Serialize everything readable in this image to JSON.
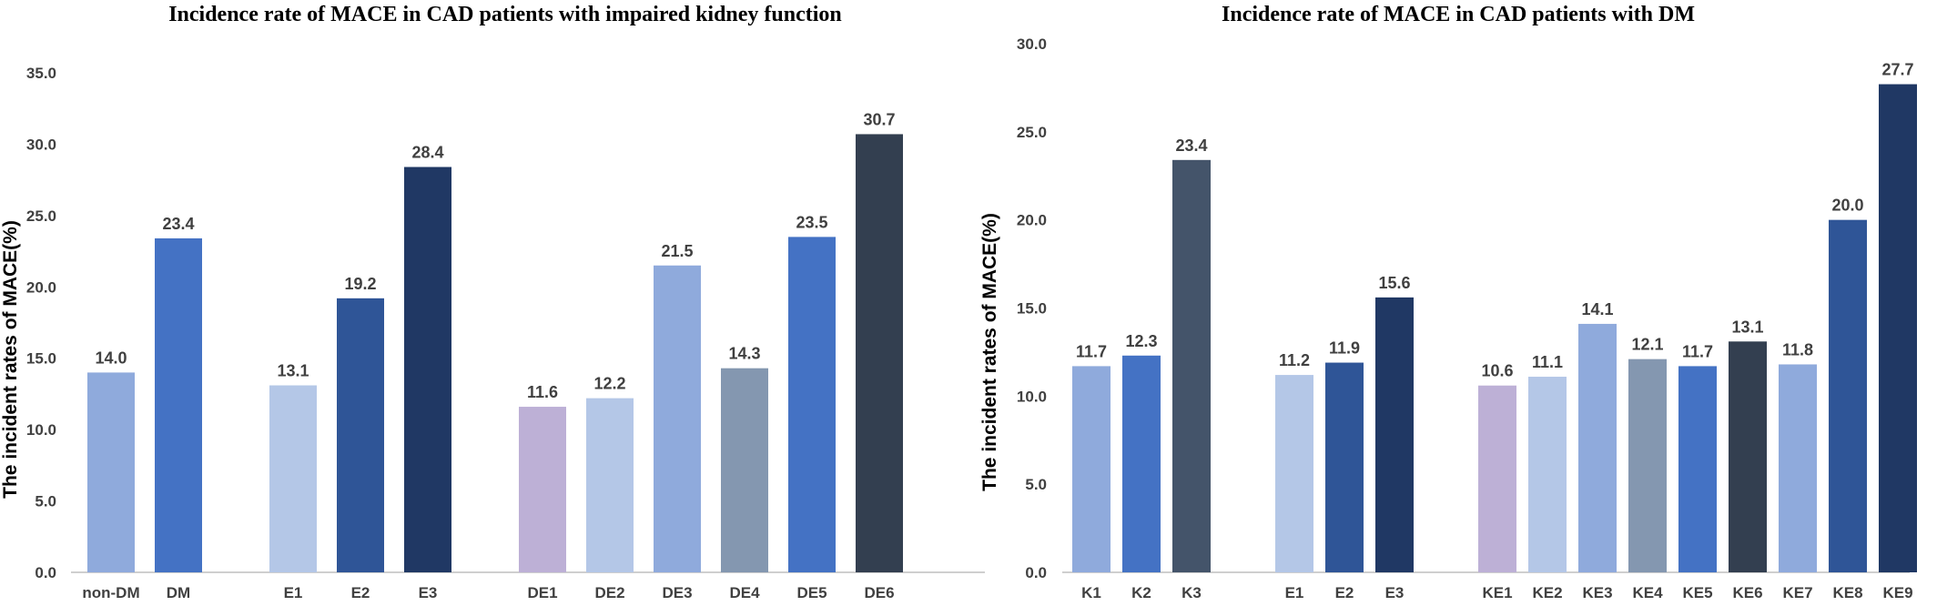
{
  "chart_data": [
    {
      "type": "bar",
      "title": "Incidence rate of MACE in CAD patients with impaired kidney function",
      "ylabel": "The incident rates of MACE(%)",
      "xlabel": "",
      "ylim": [
        0,
        35
      ],
      "yticks": [
        "0.0",
        "5.0",
        "10.0",
        "15.0",
        "20.0",
        "25.0",
        "30.0",
        "35.0"
      ],
      "grid": false,
      "groups": [
        [
          {
            "label": "non-DM",
            "value": 14.0,
            "value_label": "14.0",
            "color": "#8faadc"
          },
          {
            "label": "DM",
            "value": 23.4,
            "value_label": "23.4",
            "color": "#4472c4"
          }
        ],
        [
          {
            "label": "E1",
            "value": 13.1,
            "value_label": "13.1",
            "color": "#b4c7e7"
          },
          {
            "label": "E2",
            "value": 19.2,
            "value_label": "19.2",
            "color": "#2f5597"
          },
          {
            "label": "E3",
            "value": 28.4,
            "value_label": "28.4",
            "color": "#203864"
          }
        ],
        [
          {
            "label": "DE1",
            "value": 11.6,
            "value_label": "11.6",
            "color": "#bdb0d6"
          },
          {
            "label": "DE2",
            "value": 12.2,
            "value_label": "12.2",
            "color": "#b4c7e7"
          },
          {
            "label": "DE3",
            "value": 21.5,
            "value_label": "21.5",
            "color": "#8faadc"
          },
          {
            "label": "DE4",
            "value": 14.3,
            "value_label": "14.3",
            "color": "#8497b0"
          },
          {
            "label": "DE5",
            "value": 23.5,
            "value_label": "23.5",
            "color": "#4472c4"
          },
          {
            "label": "DE6",
            "value": 30.7,
            "value_label": "30.7",
            "color": "#333f50"
          }
        ]
      ]
    },
    {
      "type": "bar",
      "title": "Incidence rate of MACE in CAD patients with DM",
      "ylabel": "The incident rates of MACE(%)",
      "xlabel": "",
      "ylim": [
        0,
        30
      ],
      "yticks": [
        "0.0",
        "5.0",
        "10.0",
        "15.0",
        "20.0",
        "25.0",
        "30.0"
      ],
      "grid": false,
      "groups": [
        [
          {
            "label": "K1",
            "value": 11.7,
            "value_label": "11.7",
            "color": "#8faadc"
          },
          {
            "label": "K2",
            "value": 12.3,
            "value_label": "12.3",
            "color": "#4472c4"
          },
          {
            "label": "K3",
            "value": 23.4,
            "value_label": "23.4",
            "color": "#44546a"
          }
        ],
        [
          {
            "label": "E1",
            "value": 11.2,
            "value_label": "11.2",
            "color": "#b4c7e7"
          },
          {
            "label": "E2",
            "value": 11.9,
            "value_label": "11.9",
            "color": "#2f5597"
          },
          {
            "label": "E3",
            "value": 15.6,
            "value_label": "15.6",
            "color": "#203864"
          }
        ],
        [
          {
            "label": "KE1",
            "value": 10.6,
            "value_label": "10.6",
            "color": "#bdb0d6"
          },
          {
            "label": "KE2",
            "value": 11.1,
            "value_label": "11.1",
            "color": "#b4c7e7"
          },
          {
            "label": "KE3",
            "value": 14.1,
            "value_label": "14.1",
            "color": "#8faadc"
          },
          {
            "label": "KE4",
            "value": 12.1,
            "value_label": "12.1",
            "color": "#8497b0"
          },
          {
            "label": "KE5",
            "value": 11.7,
            "value_label": "11.7",
            "color": "#4472c4"
          },
          {
            "label": "KE6",
            "value": 13.1,
            "value_label": "13.1",
            "color": "#333f50"
          },
          {
            "label": "KE7",
            "value": 11.8,
            "value_label": "11.8",
            "color": "#8faadc"
          },
          {
            "label": "KE8",
            "value": 20.0,
            "value_label": "20.0",
            "color": "#2f5597"
          },
          {
            "label": "KE9",
            "value": 27.7,
            "value_label": "27.7",
            "color": "#203864"
          }
        ]
      ]
    }
  ]
}
